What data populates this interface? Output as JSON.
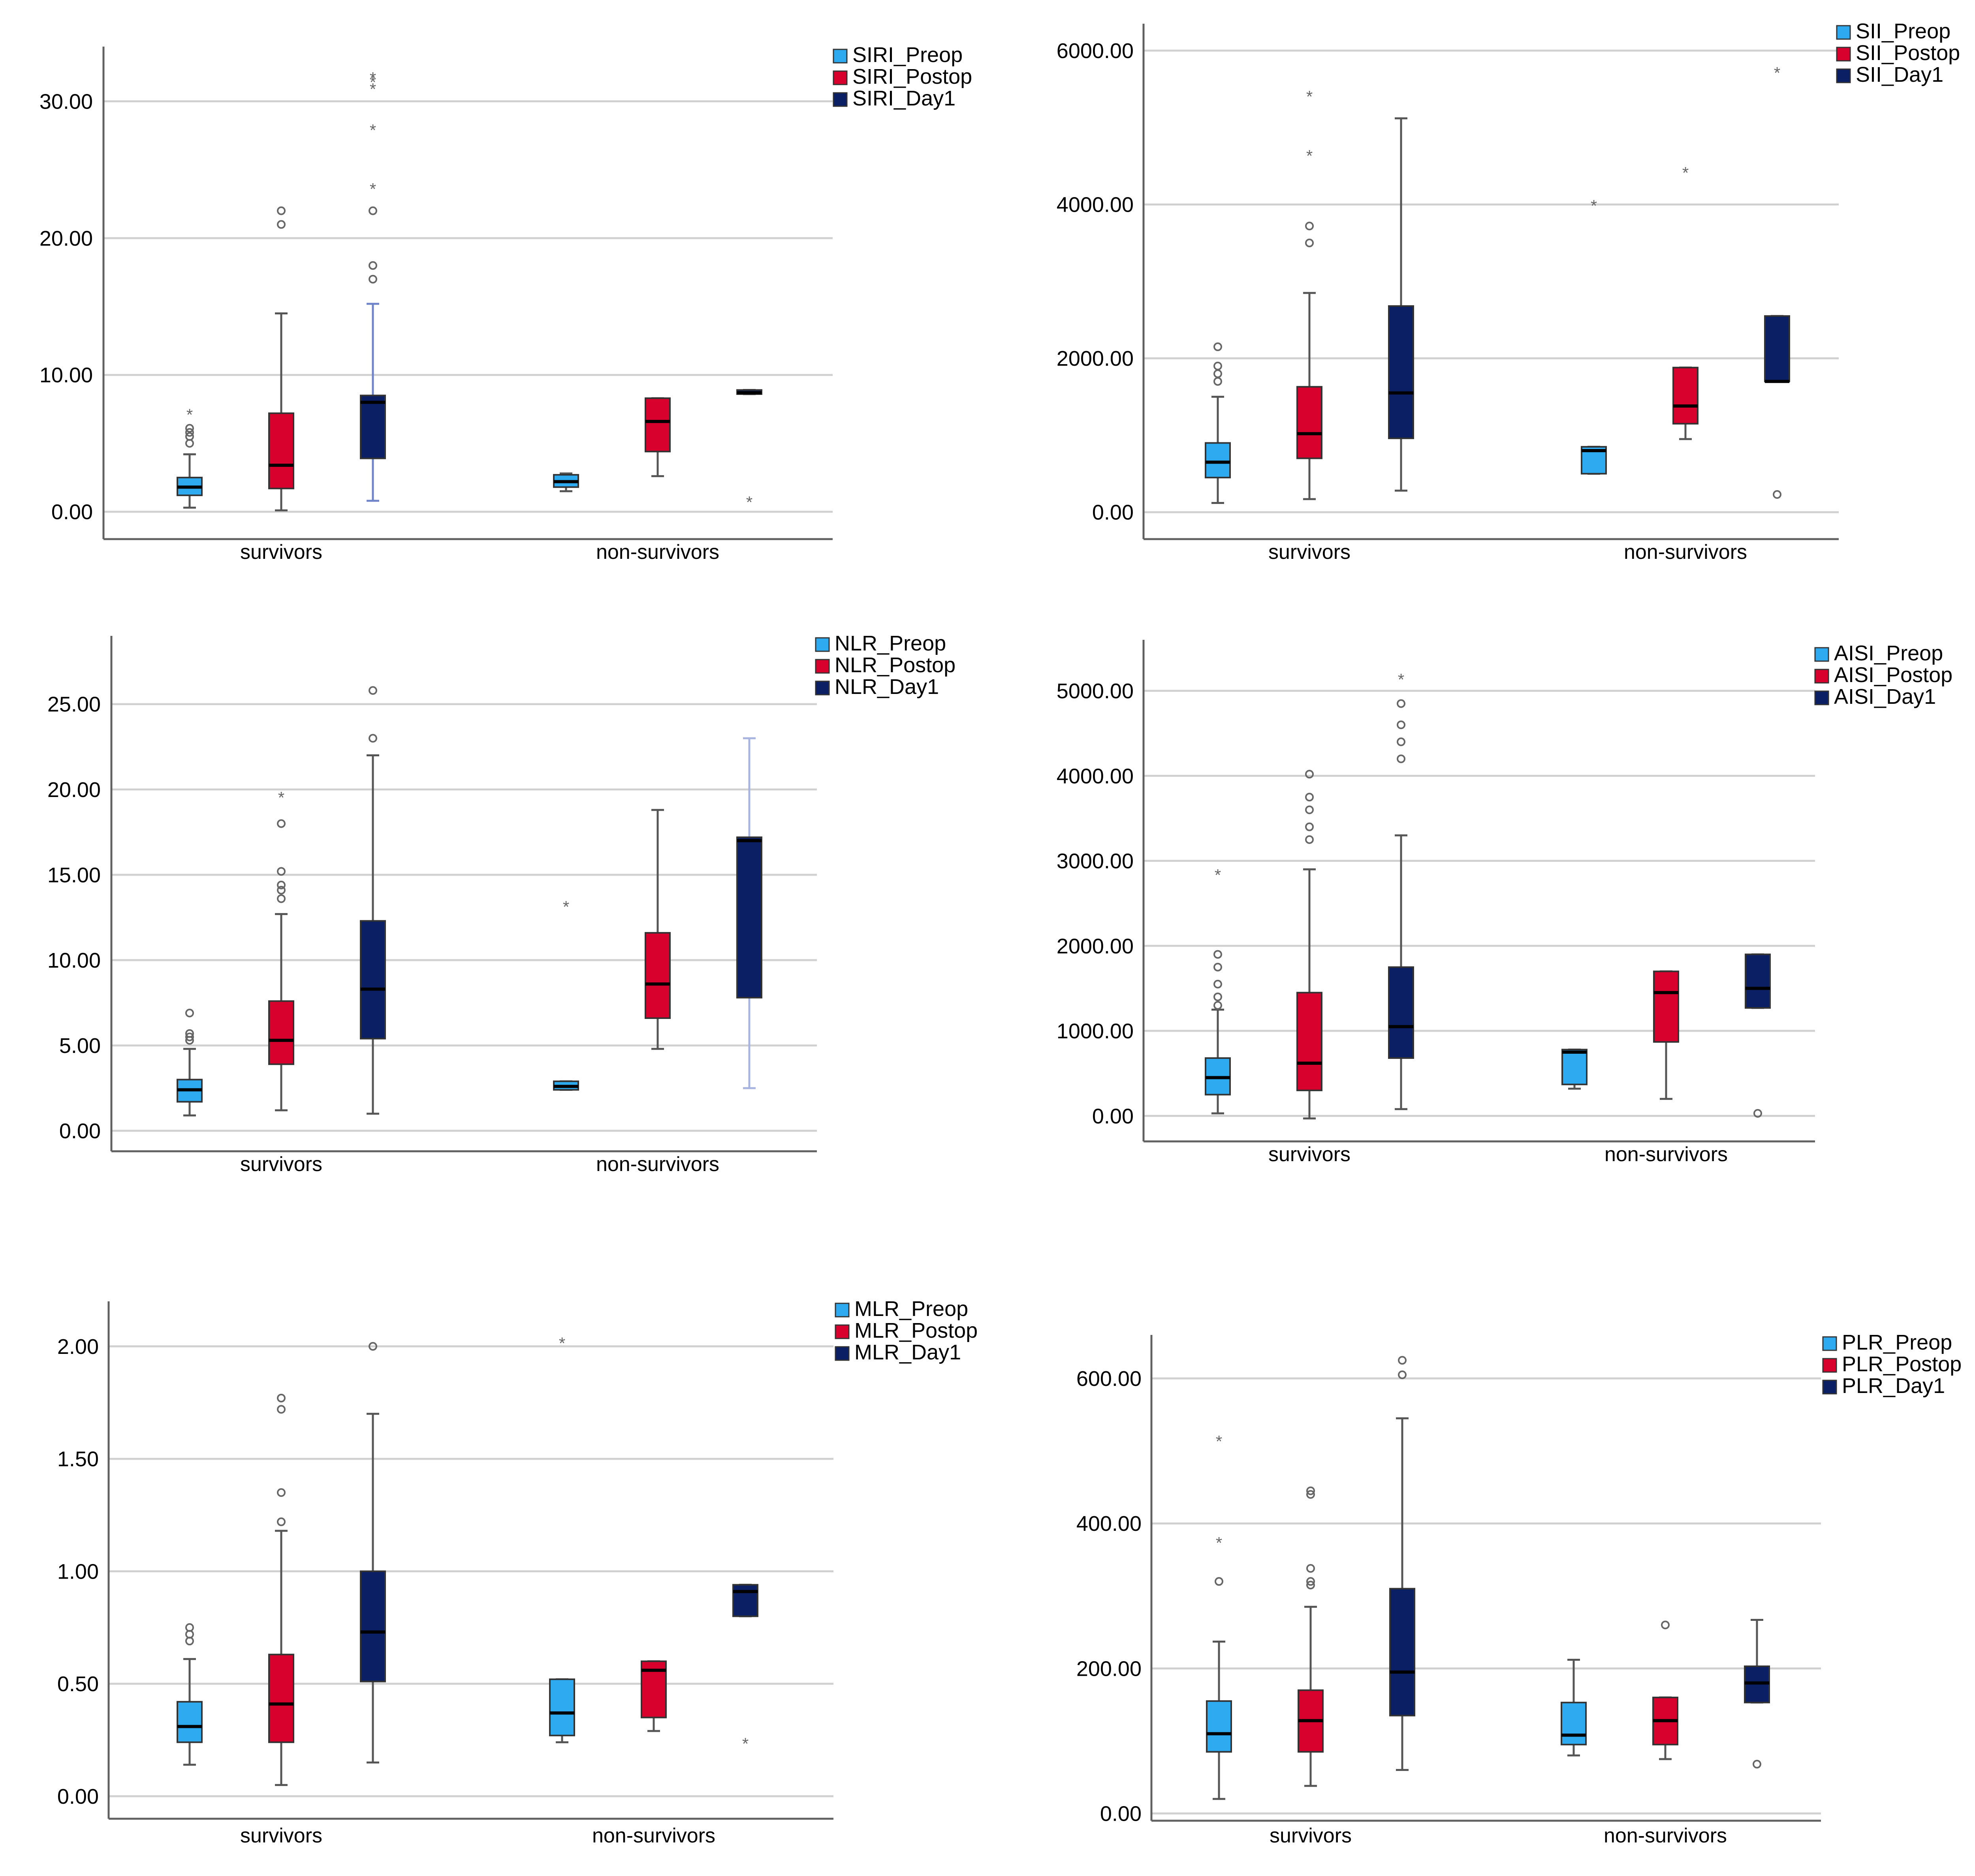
{
  "colors": {
    "preop": "#2eaaf0",
    "postop": "#d8002d",
    "day1": "#0a1f64",
    "gridline": "#d0d0d0",
    "axis": "#606060",
    "whisker": "#555555",
    "outlier": "#666666",
    "siri_day1_whisker": "#6f83c8",
    "nlr_nonsurv_day1_whisker": "#a8b4e0"
  },
  "chart_data": [
    {
      "type": "box",
      "title": "",
      "xlabel": "",
      "ylabel": "",
      "categories": [
        "survivors",
        "non-survivors"
      ],
      "ylim": [
        -2,
        34
      ],
      "yticks": [
        0,
        10,
        20,
        30
      ],
      "ytick_labels": [
        "0.00",
        "10.00",
        "20.00",
        "30.00"
      ],
      "grid": true,
      "legend_position": "top-right",
      "series": [
        {
          "name": "SIRI_Preop",
          "color_key": "preop",
          "boxes": [
            {
              "low": 0.3,
              "q1": 1.2,
              "median": 1.8,
              "q3": 2.5,
              "high": 4.2,
              "outliers": [
                5.0,
                5.5,
                5.8,
                6.1
              ],
              "extremes": [
                7.2
              ]
            },
            {
              "low": 1.5,
              "q1": 1.8,
              "median": 2.2,
              "q3": 2.7,
              "high": 2.8,
              "outliers": [],
              "extremes": []
            }
          ]
        },
        {
          "name": "SIRI_Postop",
          "color_key": "postop",
          "boxes": [
            {
              "low": 0.1,
              "q1": 1.7,
              "median": 3.4,
              "q3": 7.2,
              "high": 14.5,
              "outliers": [
                21.0,
                22.0
              ],
              "extremes": []
            },
            {
              "low": 2.6,
              "q1": 4.4,
              "median": 6.6,
              "q3": 8.3,
              "high": 8.3,
              "outliers": [],
              "extremes": []
            }
          ]
        },
        {
          "name": "SIRI_Day1",
          "color_key": "day1",
          "boxes": [
            {
              "low": 0.8,
              "q1": 3.9,
              "median": 8.0,
              "q3": 8.5,
              "high": 15.2,
              "outliers": [
                17.0,
                18.0,
                22.0
              ],
              "extremes": [
                23.7,
                28.0,
                31.0,
                31.5,
                31.8
              ]
            },
            {
              "low": 8.6,
              "q1": 8.6,
              "median": 8.7,
              "q3": 8.9,
              "high": 8.9,
              "outliers": [],
              "extremes": [
                0.8
              ]
            }
          ]
        }
      ]
    },
    {
      "type": "box",
      "title": "",
      "xlabel": "",
      "ylabel": "",
      "categories": [
        "survivors",
        "non-survivors"
      ],
      "ylim": [
        -350,
        6350
      ],
      "yticks": [
        0,
        2000,
        4000,
        6000
      ],
      "ytick_labels": [
        "0.00",
        "2000.00",
        "4000.00",
        "6000.00"
      ],
      "grid": true,
      "legend_position": "top-right",
      "series": [
        {
          "name": "SII_Preop",
          "color_key": "preop",
          "boxes": [
            {
              "low": 120,
              "q1": 450,
              "median": 650,
              "q3": 900,
              "high": 1500,
              "outliers": [
                1700,
                1800,
                1900,
                2150
              ],
              "extremes": []
            },
            {
              "low": 500,
              "q1": 500,
              "median": 800,
              "q3": 850,
              "high": 850,
              "outliers": [],
              "extremes": [
                4000
              ]
            }
          ]
        },
        {
          "name": "SII_Postop",
          "color_key": "postop",
          "boxes": [
            {
              "low": 170,
              "q1": 700,
              "median": 1020,
              "q3": 1630,
              "high": 2850,
              "outliers": [
                3500,
                3720
              ],
              "extremes": [
                4650,
                5420
              ]
            },
            {
              "low": 950,
              "q1": 1150,
              "median": 1380,
              "q3": 1880,
              "high": 1880,
              "outliers": [],
              "extremes": [
                4430
              ]
            }
          ]
        },
        {
          "name": "SII_Day1",
          "color_key": "day1",
          "boxes": [
            {
              "low": 280,
              "q1": 960,
              "median": 1550,
              "q3": 2680,
              "high": 5120,
              "outliers": [],
              "extremes": []
            },
            {
              "low": 1700,
              "q1": 1700,
              "median": 1700,
              "q3": 2550,
              "high": 2550,
              "outliers": [
                230
              ],
              "extremes": [
                5730
              ]
            }
          ]
        }
      ]
    },
    {
      "type": "box",
      "title": "",
      "xlabel": "",
      "ylabel": "",
      "categories": [
        "survivors",
        "non-survivors"
      ],
      "ylim": [
        -1.2,
        29
      ],
      "yticks": [
        0,
        5,
        10,
        15,
        20,
        25
      ],
      "ytick_labels": [
        "0.00",
        "5.00",
        "10.00",
        "15.00",
        "20.00",
        "25.00"
      ],
      "grid": true,
      "legend_position": "top-right",
      "series": [
        {
          "name": "NLR_Preop",
          "color_key": "preop",
          "boxes": [
            {
              "low": 0.9,
              "q1": 1.7,
              "median": 2.4,
              "q3": 3.0,
              "high": 4.8,
              "outliers": [
                5.3,
                5.5,
                5.7,
                6.9
              ],
              "extremes": []
            },
            {
              "low": 2.4,
              "q1": 2.4,
              "median": 2.6,
              "q3": 2.9,
              "high": 2.9,
              "outliers": [],
              "extremes": [
                13.2
              ]
            }
          ]
        },
        {
          "name": "NLR_Postop",
          "color_key": "postop",
          "boxes": [
            {
              "low": 1.2,
              "q1": 3.9,
              "median": 5.3,
              "q3": 7.6,
              "high": 12.7,
              "outliers": [
                13.6,
                14.1,
                14.4,
                15.2,
                18.0
              ],
              "extremes": [
                19.6
              ]
            },
            {
              "low": 4.8,
              "q1": 6.6,
              "median": 8.6,
              "q3": 11.6,
              "high": 18.8,
              "outliers": [],
              "extremes": []
            }
          ]
        },
        {
          "name": "NLR_Day1",
          "color_key": "day1",
          "boxes": [
            {
              "low": 1.0,
              "q1": 5.4,
              "median": 8.3,
              "q3": 12.3,
              "high": 22.0,
              "outliers": [
                23.0,
                25.8
              ],
              "extremes": []
            },
            {
              "low": 2.5,
              "q1": 7.8,
              "median": 17.0,
              "q3": 17.2,
              "high": 23.0,
              "outliers": [],
              "extremes": []
            }
          ]
        }
      ]
    },
    {
      "type": "box",
      "title": "",
      "xlabel": "",
      "ylabel": "",
      "categories": [
        "survivors",
        "non-survivors"
      ],
      "ylim": [
        -300,
        5600
      ],
      "yticks": [
        0,
        1000,
        2000,
        3000,
        4000,
        5000
      ],
      "ytick_labels": [
        "0.00",
        "1000.00",
        "2000.00",
        "3000.00",
        "4000.00",
        "5000.00"
      ],
      "grid": true,
      "legend_position": "top-right",
      "series": [
        {
          "name": "AISI_Preop",
          "color_key": "preop",
          "boxes": [
            {
              "low": 30,
              "q1": 250,
              "median": 450,
              "q3": 680,
              "high": 1250,
              "outliers": [
                1300,
                1400,
                1550,
                1750,
                1900
              ],
              "extremes": [
                2850
              ]
            },
            {
              "low": 320,
              "q1": 370,
              "median": 750,
              "q3": 780,
              "high": 780,
              "outliers": [],
              "extremes": []
            }
          ]
        },
        {
          "name": "AISI_Postop",
          "color_key": "postop",
          "boxes": [
            {
              "low": -30,
              "q1": 300,
              "median": 620,
              "q3": 1450,
              "high": 2900,
              "outliers": [
                3250,
                3400,
                3600,
                3750,
                4020
              ],
              "extremes": []
            },
            {
              "low": 200,
              "q1": 870,
              "median": 1450,
              "q3": 1700,
              "high": 1700,
              "outliers": [],
              "extremes": []
            }
          ]
        },
        {
          "name": "AISI_Day1",
          "color_key": "day1",
          "boxes": [
            {
              "low": 80,
              "q1": 680,
              "median": 1050,
              "q3": 1750,
              "high": 3300,
              "outliers": [
                4200,
                4400,
                4600,
                4850
              ],
              "extremes": [
                5150
              ]
            },
            {
              "low": 1270,
              "q1": 1270,
              "median": 1500,
              "q3": 1900,
              "high": 1900,
              "outliers": [
                30
              ],
              "extremes": []
            }
          ]
        }
      ]
    },
    {
      "type": "box",
      "title": "",
      "xlabel": "",
      "ylabel": "",
      "categories": [
        "survivors",
        "non-survivors"
      ],
      "ylim": [
        -0.1,
        2.2
      ],
      "yticks": [
        0,
        0.5,
        1.0,
        1.5,
        2.0
      ],
      "ytick_labels": [
        "0.00",
        "0.50",
        "1.00",
        "1.50",
        "2.00"
      ],
      "grid": true,
      "legend_position": "top-right",
      "series": [
        {
          "name": "MLR_Preop",
          "color_key": "preop",
          "boxes": [
            {
              "low": 0.14,
              "q1": 0.24,
              "median": 0.31,
              "q3": 0.42,
              "high": 0.61,
              "outliers": [
                0.69,
                0.72,
                0.75
              ],
              "extremes": []
            },
            {
              "low": 0.24,
              "q1": 0.27,
              "median": 0.37,
              "q3": 0.52,
              "high": 0.52,
              "outliers": [],
              "extremes": [
                2.02
              ]
            }
          ]
        },
        {
          "name": "MLR_Postop",
          "color_key": "postop",
          "boxes": [
            {
              "low": 0.05,
              "q1": 0.24,
              "median": 0.41,
              "q3": 0.63,
              "high": 1.18,
              "outliers": [
                1.22,
                1.35,
                1.72,
                1.77
              ],
              "extremes": []
            },
            {
              "low": 0.29,
              "q1": 0.35,
              "median": 0.56,
              "q3": 0.6,
              "high": 0.6,
              "outliers": [],
              "extremes": []
            }
          ]
        },
        {
          "name": "MLR_Day1",
          "color_key": "day1",
          "boxes": [
            {
              "low": 0.15,
              "q1": 0.51,
              "median": 0.73,
              "q3": 1.0,
              "high": 1.7,
              "outliers": [
                2.0
              ],
              "extremes": []
            },
            {
              "low": 0.8,
              "q1": 0.8,
              "median": 0.91,
              "q3": 0.94,
              "high": 0.94,
              "outliers": [],
              "extremes": [
                0.24
              ]
            }
          ]
        }
      ]
    },
    {
      "type": "box",
      "title": "",
      "xlabel": "",
      "ylabel": "",
      "categories": [
        "survivors",
        "non-survivors"
      ],
      "ylim": [
        -10,
        660
      ],
      "yticks": [
        0,
        200,
        400,
        600
      ],
      "ytick_labels": [
        "0.00",
        "200.00",
        "400.00",
        "600.00"
      ],
      "grid": true,
      "legend_position": "top-right",
      "series": [
        {
          "name": "PLR_Preop",
          "color_key": "preop",
          "boxes": [
            {
              "low": 20,
              "q1": 85,
              "median": 110,
              "q3": 155,
              "high": 237,
              "outliers": [
                320
              ],
              "extremes": [
                375,
                515
              ]
            },
            {
              "low": 80,
              "q1": 95,
              "median": 108,
              "q3": 153,
              "high": 212,
              "outliers": [],
              "extremes": []
            }
          ]
        },
        {
          "name": "PLR_Postop",
          "color_key": "postop",
          "boxes": [
            {
              "low": 38,
              "q1": 85,
              "median": 128,
              "q3": 170,
              "high": 285,
              "outliers": [
                315,
                320,
                338,
                440,
                445
              ],
              "extremes": []
            },
            {
              "low": 75,
              "q1": 95,
              "median": 128,
              "q3": 160,
              "high": 160,
              "outliers": [
                260
              ],
              "extremes": []
            }
          ]
        },
        {
          "name": "PLR_Day1",
          "color_key": "day1",
          "boxes": [
            {
              "low": 60,
              "q1": 135,
              "median": 195,
              "q3": 310,
              "high": 545,
              "outliers": [
                605,
                625
              ],
              "extremes": []
            },
            {
              "low": 153,
              "q1": 153,
              "median": 180,
              "q3": 203,
              "high": 267,
              "outliers": [
                68
              ],
              "extremes": []
            }
          ]
        }
      ]
    }
  ]
}
